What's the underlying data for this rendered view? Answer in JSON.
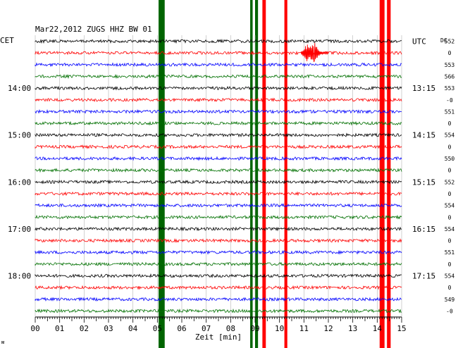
{
  "chart_data": {
    "type": "line",
    "title": "Mar22,2012   ZUGS HHZ BW 01",
    "left_axis_label": "CET",
    "right_axis_label": "UTC",
    "dc_label": "DC",
    "xlabel": "Zeit [min]",
    "xlim": [
      0,
      15
    ],
    "x_tick_labels": [
      "00",
      "01",
      "02",
      "03",
      "04",
      "05",
      "06",
      "07",
      "08",
      "09",
      "10",
      "11",
      "12",
      "13",
      "14",
      "15"
    ],
    "trace_count": 24,
    "trace_colors": [
      "#000000",
      "#ff0000",
      "#0000ff",
      "#007000"
    ],
    "left_hour_labels": [
      {
        "trace": 4,
        "label": "14:00"
      },
      {
        "trace": 8,
        "label": "15:00"
      },
      {
        "trace": 12,
        "label": "16:00"
      },
      {
        "trace": 16,
        "label": "17:00"
      },
      {
        "trace": 20,
        "label": "18:00"
      }
    ],
    "right_hour_labels": [
      {
        "trace": 0,
        "label": "UTC"
      },
      {
        "trace": 4,
        "label": "13:15"
      },
      {
        "trace": 8,
        "label": "14:15"
      },
      {
        "trace": 12,
        "label": "15:15"
      },
      {
        "trace": 16,
        "label": "16:15"
      },
      {
        "trace": 20,
        "label": "17:15"
      }
    ],
    "dc_offsets": [
      "552",
      "0",
      "553",
      "566",
      "553",
      "-0",
      "551",
      "0",
      "554",
      "0",
      "550",
      "0",
      "552",
      "0",
      "554",
      "0",
      "554",
      "0",
      "551",
      "0",
      "554",
      "0",
      "549",
      "-0"
    ],
    "saturated_bands": [
      {
        "start_min": 5.05,
        "end_min": 5.3,
        "color": "#006400"
      },
      {
        "start_min": 8.8,
        "end_min": 8.9,
        "color": "#006400"
      },
      {
        "start_min": 9.0,
        "end_min": 9.12,
        "color": "#006400"
      },
      {
        "start_min": 9.3,
        "end_min": 9.44,
        "color": "#ff0000"
      },
      {
        "start_min": 10.2,
        "end_min": 10.32,
        "color": "#ff0000"
      },
      {
        "start_min": 14.1,
        "end_min": 14.3,
        "color": "#ff0000"
      },
      {
        "start_min": 14.4,
        "end_min": 14.55,
        "color": "#ff0000"
      }
    ],
    "event": {
      "trace": 1,
      "start_min": 10.9,
      "end_min": 12.0,
      "color": "#ff0000"
    },
    "grid": true,
    "footer_mark": "ᴍ"
  }
}
